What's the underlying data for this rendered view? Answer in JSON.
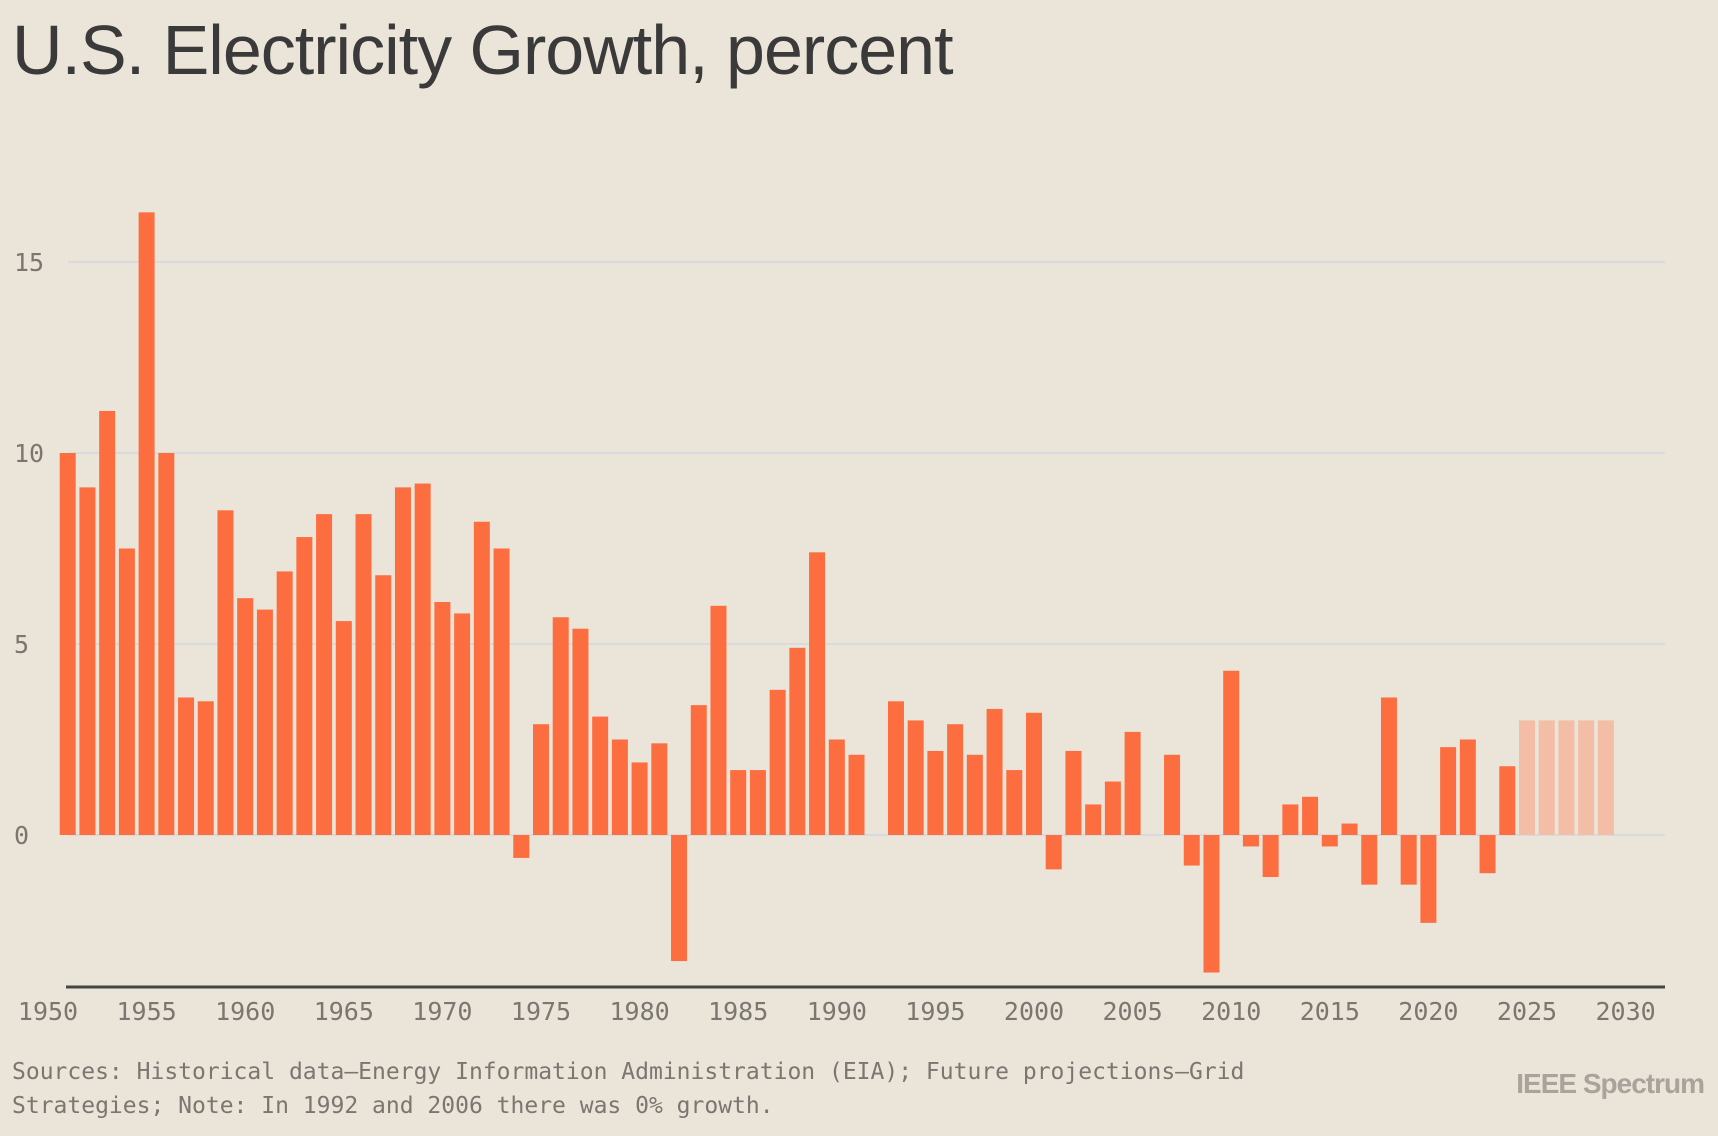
{
  "chart_data": {
    "type": "bar",
    "title": "U.S. Electricity Growth, percent",
    "xlabel": "",
    "ylabel": "",
    "x": [
      1951,
      1952,
      1953,
      1954,
      1955,
      1956,
      1957,
      1958,
      1959,
      1960,
      1961,
      1962,
      1963,
      1964,
      1965,
      1966,
      1967,
      1968,
      1969,
      1970,
      1971,
      1972,
      1973,
      1974,
      1975,
      1976,
      1977,
      1978,
      1979,
      1980,
      1981,
      1982,
      1983,
      1984,
      1985,
      1986,
      1987,
      1988,
      1989,
      1990,
      1991,
      1992,
      1993,
      1994,
      1995,
      1996,
      1997,
      1998,
      1999,
      2000,
      2001,
      2002,
      2003,
      2004,
      2005,
      2006,
      2007,
      2008,
      2009,
      2010,
      2011,
      2012,
      2013,
      2014,
      2015,
      2016,
      2017,
      2018,
      2019,
      2020,
      2021,
      2022,
      2023,
      2024,
      2025,
      2026,
      2027,
      2028,
      2029
    ],
    "values": [
      10.0,
      9.1,
      11.1,
      7.5,
      16.3,
      10.0,
      3.6,
      3.5,
      8.5,
      6.2,
      5.9,
      6.9,
      7.8,
      8.4,
      5.6,
      8.4,
      6.8,
      9.1,
      9.2,
      6.1,
      5.8,
      8.2,
      7.5,
      -0.6,
      2.9,
      5.7,
      5.4,
      3.1,
      2.5,
      1.9,
      2.4,
      -3.3,
      3.4,
      6.0,
      1.7,
      1.7,
      3.8,
      4.9,
      7.4,
      2.5,
      2.1,
      0,
      3.5,
      3.0,
      2.2,
      2.9,
      2.1,
      3.3,
      1.7,
      3.2,
      -0.9,
      2.2,
      0.8,
      1.4,
      2.7,
      0,
      2.1,
      -0.8,
      -3.6,
      4.3,
      -0.3,
      -1.1,
      0.8,
      1.0,
      -0.3,
      0.3,
      -1.3,
      3.6,
      -1.3,
      -2.3,
      2.3,
      2.5,
      -1.0,
      1.8,
      3.0,
      3.0,
      3.0,
      3.0,
      3.0
    ],
    "projection_start": 2025,
    "x_ticks": [
      1950,
      1955,
      1960,
      1965,
      1970,
      1975,
      1980,
      1985,
      1990,
      1995,
      2000,
      2005,
      2010,
      2015,
      2020,
      2025,
      2030
    ],
    "y_ticks": [
      0,
      5,
      10,
      15
    ],
    "xlim": [
      1950,
      2030
    ],
    "ylim": [
      -4,
      16.5
    ],
    "grid": true,
    "colors": {
      "historical": "#fc6e3f",
      "projection": "#f3bea5",
      "grid": "#d8dade",
      "axis": "#444444"
    }
  },
  "footer": {
    "source": "Sources: Historical data—Energy Information Administration (EIA); Future projections—Grid Strategies; Note: In 1992 and 2006 there was 0% growth.",
    "brand": "IEEE Spectrum"
  }
}
